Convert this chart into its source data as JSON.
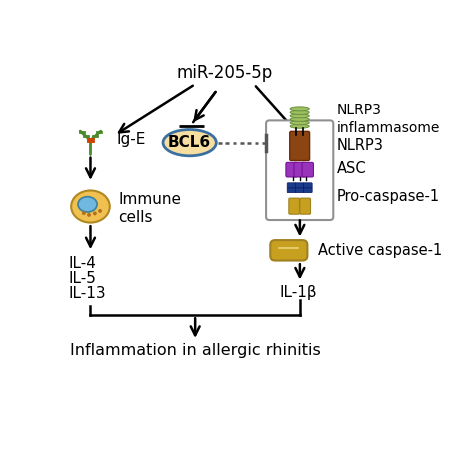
{
  "title": "miR-205-5p",
  "bg_color": "#ffffff",
  "text_color": "#000000",
  "left_pathway": {
    "ige_label": "Ig-E",
    "immune_label": "Immune\ncells",
    "cytokines": [
      "IL-4",
      "IL-5",
      "IL-13"
    ]
  },
  "middle": {
    "bcl6_label": "BCL6",
    "bcl6_fill": "#f5dea0",
    "bcl6_edge": "#3a6fa0"
  },
  "right_pathway": {
    "nlrp3_inflammasome_label": "NLRP3\ninflammasome",
    "complex_labels": [
      "NLRP3",
      "ASC",
      "Pro-caspase-1"
    ],
    "active_caspase_label": "Active caspase-1",
    "il1b_label": "IL-1β"
  },
  "bottom_label": "Inflammation in allergic rhinitis",
  "colors": {
    "green": "#4a8a2a",
    "orange_red": "#cc4400",
    "gold": "#c8a020",
    "gold_dark": "#a08020",
    "brown": "#8b4513",
    "purple": "#9933bb",
    "blue_dark": "#1a3a8a",
    "light_green": "#9fc060",
    "light_green_dark": "#6a9040",
    "cell_body": "#f0c050",
    "cell_nucleus": "#70b8e0",
    "dashed_line": "#555555"
  }
}
